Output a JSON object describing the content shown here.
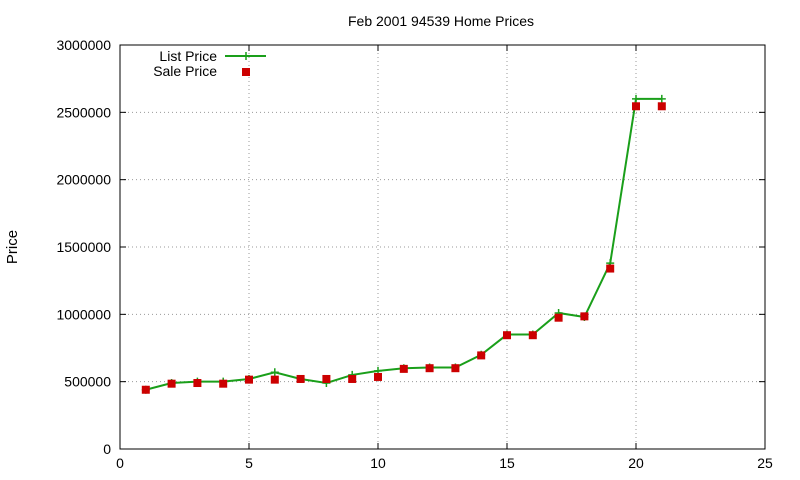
{
  "chart_data": {
    "type": "line",
    "title": "Feb 2001 94539 Home Prices",
    "xlabel": "",
    "ylabel": "Price",
    "xlim": [
      0,
      25
    ],
    "ylim": [
      0,
      3000000
    ],
    "x_ticks": [
      0,
      5,
      10,
      15,
      20,
      25
    ],
    "y_ticks": [
      0,
      500000,
      1000000,
      1500000,
      2000000,
      2500000,
      3000000
    ],
    "grid": true,
    "legend_position": "top-left",
    "series": [
      {
        "name": "List Price",
        "style": "line-with-plus-markers",
        "color": "#1a9f1a",
        "x": [
          1,
          2,
          3,
          4,
          5,
          6,
          7,
          8,
          9,
          10,
          11,
          12,
          13,
          14,
          15,
          16,
          17,
          18,
          19,
          20,
          21
        ],
        "y": [
          440000,
          490000,
          500000,
          500000,
          520000,
          570000,
          520000,
          490000,
          550000,
          580000,
          600000,
          605000,
          605000,
          700000,
          850000,
          850000,
          1010000,
          980000,
          1380000,
          2600000,
          2600000
        ]
      },
      {
        "name": "Sale Price",
        "style": "square-markers",
        "color": "#cc0000",
        "x": [
          1,
          2,
          3,
          4,
          5,
          6,
          7,
          8,
          9,
          10,
          11,
          12,
          13,
          14,
          15,
          16,
          17,
          18,
          19,
          20,
          21
        ],
        "y": [
          440000,
          485000,
          490000,
          485000,
          515000,
          515000,
          520000,
          520000,
          520000,
          535000,
          595000,
          600000,
          600000,
          695000,
          845000,
          845000,
          975000,
          985000,
          1340000,
          2545000,
          2545000
        ]
      }
    ]
  }
}
